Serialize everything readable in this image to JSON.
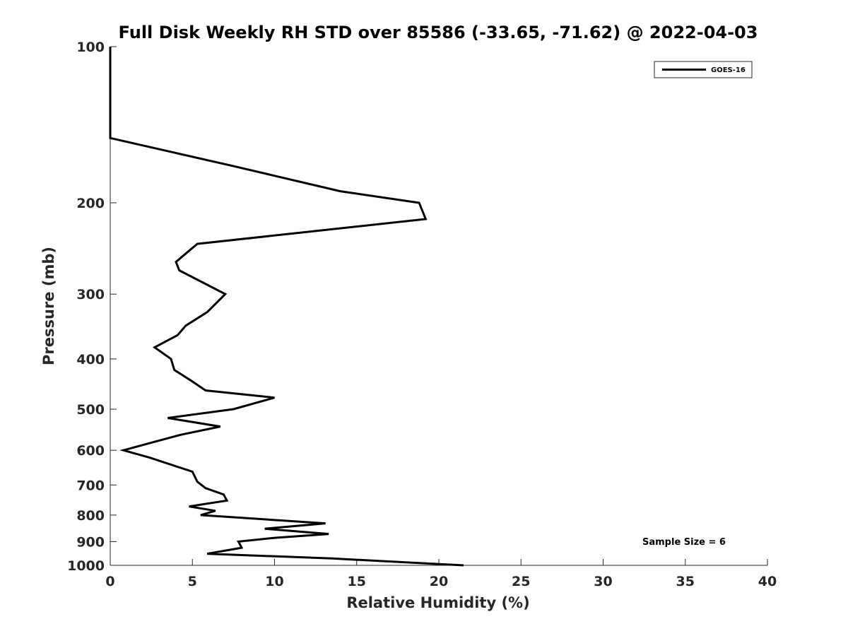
{
  "chart_data": {
    "type": "line",
    "title": "Full Disk Weekly RH STD over 85586 (-33.65, -71.62) @ 2022-04-03",
    "xlabel": "Relative Humidity (%)",
    "ylabel": "Pressure (mb)",
    "xlim": [
      0,
      40
    ],
    "ylim": [
      100,
      1000
    ],
    "y_scale": "log",
    "y_reversed": true,
    "grid": false,
    "x_ticks": [
      0,
      5,
      10,
      15,
      20,
      25,
      30,
      35,
      40
    ],
    "y_ticks": [
      100,
      200,
      300,
      400,
      500,
      600,
      700,
      800,
      900,
      1000
    ],
    "legend_position": "top-right",
    "annotation": "Sample Size = 6",
    "series": [
      {
        "name": "GOES-16",
        "color": "#000000",
        "points": [
          [
            0,
            100
          ],
          [
            0,
            150
          ],
          [
            7.5,
            170
          ],
          [
            14,
            190
          ],
          [
            18.8,
            200
          ],
          [
            19.2,
            215
          ],
          [
            5.3,
            240
          ],
          [
            4,
            260
          ],
          [
            4.2,
            270
          ],
          [
            7,
            300
          ],
          [
            5.9,
            325
          ],
          [
            4.6,
            345
          ],
          [
            4.1,
            360
          ],
          [
            2.7,
            380
          ],
          [
            3.7,
            400
          ],
          [
            3.9,
            420
          ],
          [
            4.9,
            440
          ],
          [
            5.8,
            460
          ],
          [
            10,
            475
          ],
          [
            7.5,
            500
          ],
          [
            3.5,
            520
          ],
          [
            6.7,
            540
          ],
          [
            4.3,
            560
          ],
          [
            2.5,
            580
          ],
          [
            0.8,
            600
          ],
          [
            2.4,
            620
          ],
          [
            5,
            660
          ],
          [
            5.3,
            690
          ],
          [
            5.8,
            710
          ],
          [
            6.9,
            730
          ],
          [
            7.1,
            750
          ],
          [
            4.8,
            770
          ],
          [
            6.4,
            785
          ],
          [
            5.5,
            800
          ],
          [
            13.1,
            830
          ],
          [
            9.4,
            850
          ],
          [
            13.3,
            870
          ],
          [
            10,
            885
          ],
          [
            7.8,
            900
          ],
          [
            8,
            925
          ],
          [
            5.9,
            950
          ],
          [
            13.5,
            970
          ],
          [
            21.5,
            1000
          ]
        ]
      }
    ]
  }
}
